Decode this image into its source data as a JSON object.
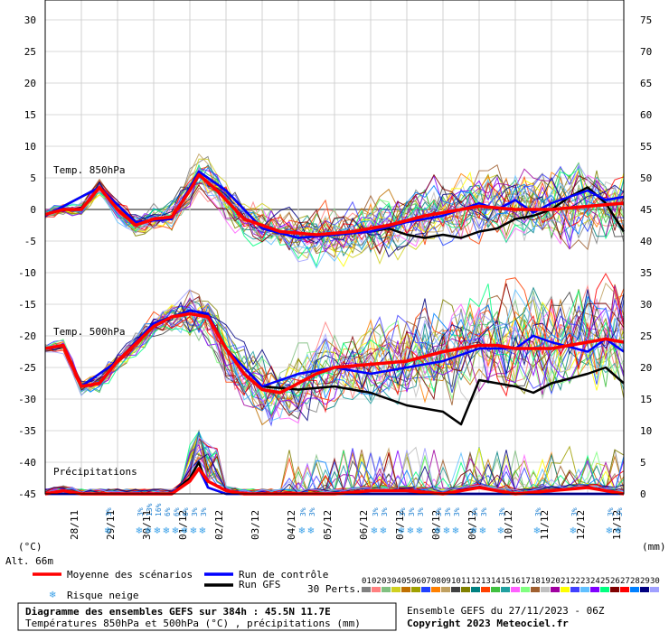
{
  "chart_data": {
    "type": "line",
    "title": "Diagramme des ensembles GEFS sur 384h : 45.5N 11.7E",
    "subtitle": "Températures 850hPa et 500hPa (°C) , précipitations (mm)",
    "run_info": "Ensemble GEFS du 27/11/2023 - 06Z",
    "copyright": "Copyright 2023 Meteociel.fr",
    "altitude": "Alt. 66m",
    "left_unit": "(°C)",
    "right_unit": "(mm)",
    "left_ticks": [
      "30",
      "25",
      "20",
      "15",
      "10",
      "5",
      "0",
      "-5",
      "-10",
      "-15",
      "-20",
      "-25",
      "-30",
      "-35",
      "-40",
      "-45"
    ],
    "right_ticks": [
      "75",
      "70",
      "65",
      "60",
      "55",
      "50",
      "45",
      "40",
      "35",
      "30",
      "25",
      "20",
      "15",
      "10",
      "5",
      "0"
    ],
    "left_range": [
      -45,
      30
    ],
    "right_range": [
      0,
      75
    ],
    "x_labels": [
      "28/11",
      "29/11",
      "30/11",
      "01/12",
      "02/12",
      "03/12",
      "04/12",
      "05/12",
      "06/12",
      "07/12",
      "08/12",
      "09/12",
      "10/12",
      "11/12",
      "12/12",
      "13/12"
    ],
    "panel_labels": {
      "t850": "Temp. 850hPa",
      "t500": "Temp. 500hPa",
      "precip": "Précipitations"
    },
    "legend": {
      "mean": "Moyenne des scénarios",
      "control": "Run de contrôle",
      "gfs": "Run GFS",
      "snow": "Risque neige",
      "perts": "30 Perts."
    },
    "pert_numbers": [
      "01",
      "02",
      "03",
      "04",
      "05",
      "06",
      "07",
      "08",
      "09",
      "10",
      "11",
      "12",
      "13",
      "14",
      "15",
      "16",
      "17",
      "18",
      "19",
      "20",
      "21",
      "22",
      "23",
      "24",
      "25",
      "26",
      "27",
      "28",
      "29",
      "30"
    ],
    "pert_colors": [
      "#808080",
      "#ff8080",
      "#80c080",
      "#d0d020",
      "#c07000",
      "#a0a000",
      "#2040ff",
      "#ff8000",
      "#c0a060",
      "#404040",
      "#808000",
      "#008080",
      "#ff4000",
      "#40c040",
      "#20a0a0",
      "#ff60ff",
      "#80ff80",
      "#a06030",
      "#c0c0c0",
      "#a000a0",
      "#ffff00",
      "#4040ff",
      "#60c0ff",
      "#8000ff",
      "#00ff80",
      "#800000",
      "#ff0000",
      "#0080ff",
      "#000080",
      "#a0a0ff"
    ],
    "series_colors": {
      "mean": "#ff0000",
      "control": "#0000ff",
      "gfs": "#000000"
    },
    "snow_markers": [
      {
        "pct": "3%",
        "day": 1.75
      },
      {
        "pct": "3%",
        "day": 2.62
      },
      {
        "pct": "13%",
        "day": 2.87
      },
      {
        "pct": "16%",
        "day": 3.12
      },
      {
        "pct": "6%",
        "day": 3.37
      },
      {
        "pct": "6%",
        "day": 3.62
      },
      {
        "pct": "6%",
        "day": 3.87
      },
      {
        "pct": "3%",
        "day": 4.12
      },
      {
        "pct": "3%",
        "day": 4.37
      },
      {
        "pct": "3%",
        "day": 7.12
      },
      {
        "pct": "3%",
        "day": 7.37
      },
      {
        "pct": "3%",
        "day": 9.12
      },
      {
        "pct": "3%",
        "day": 9.37
      },
      {
        "pct": "3%",
        "day": 9.87
      },
      {
        "pct": "3%",
        "day": 10.12
      },
      {
        "pct": "3%",
        "day": 10.37
      },
      {
        "pct": "3%",
        "day": 10.87
      },
      {
        "pct": "3%",
        "day": 11.12
      },
      {
        "pct": "3%",
        "day": 11.37
      },
      {
        "pct": "3%",
        "day": 11.87
      },
      {
        "pct": "3%",
        "day": 12.12
      },
      {
        "pct": "3%",
        "day": 12.62
      },
      {
        "pct": "3%",
        "day": 13.62
      },
      {
        "pct": "3%",
        "day": 14.62
      },
      {
        "pct": "3%",
        "day": 15.62
      },
      {
        "pct": "3%",
        "day": 15.87
      }
    ],
    "t850": {
      "mean": [
        [
          0,
          -0.8
        ],
        [
          0.5,
          0
        ],
        [
          1,
          0
        ],
        [
          1.5,
          3.5
        ],
        [
          2,
          0
        ],
        [
          2.5,
          -2.5
        ],
        [
          3,
          -1.5
        ],
        [
          3.5,
          -1.2
        ],
        [
          4,
          3
        ],
        [
          4.25,
          5.5
        ],
        [
          4.75,
          3
        ],
        [
          5.5,
          -1.5
        ],
        [
          6.5,
          -3.5
        ],
        [
          7.5,
          -4
        ],
        [
          8.5,
          -3.5
        ],
        [
          9.5,
          -2.5
        ],
        [
          10.5,
          -1
        ],
        [
          11.5,
          0
        ],
        [
          12,
          0.5
        ],
        [
          13,
          0
        ],
        [
          14,
          0
        ],
        [
          15,
          0.5
        ],
        [
          16,
          1
        ]
      ],
      "control": [
        [
          0,
          -1
        ],
        [
          1.5,
          3.5
        ],
        [
          2.5,
          -2
        ],
        [
          3.5,
          -1.5
        ],
        [
          4.25,
          6
        ],
        [
          5,
          3
        ],
        [
          6,
          -3
        ],
        [
          7,
          -4.5
        ],
        [
          8,
          -4
        ],
        [
          9,
          -3.5
        ],
        [
          10,
          -2
        ],
        [
          10.5,
          -1.5
        ],
        [
          11,
          -1
        ],
        [
          11.5,
          0
        ],
        [
          12,
          1
        ],
        [
          12.5,
          0
        ],
        [
          13,
          1.5
        ],
        [
          13.5,
          -0.5
        ],
        [
          14,
          1
        ],
        [
          14.5,
          2
        ],
        [
          15,
          3
        ],
        [
          15.5,
          1.5
        ],
        [
          16,
          2
        ]
      ],
      "gfs": [
        [
          0,
          -1
        ],
        [
          1.5,
          3.5
        ],
        [
          2.5,
          -2
        ],
        [
          3.5,
          -1.5
        ],
        [
          4.25,
          6
        ],
        [
          5,
          3
        ],
        [
          6,
          -3
        ],
        [
          7,
          -4.5
        ],
        [
          8,
          -4
        ],
        [
          9,
          -3.5
        ],
        [
          9.5,
          -3
        ],
        [
          10,
          -4
        ],
        [
          10.5,
          -4.5
        ],
        [
          11,
          -4
        ],
        [
          11.5,
          -4.5
        ],
        [
          12,
          -3.5
        ],
        [
          12.5,
          -3
        ],
        [
          13,
          -1.5
        ],
        [
          13.5,
          -1
        ],
        [
          14,
          0
        ],
        [
          14.5,
          2
        ],
        [
          15,
          3.5
        ],
        [
          15.5,
          1
        ],
        [
          16,
          -3.5
        ]
      ]
    },
    "t500": {
      "mean": [
        [
          0,
          -22
        ],
        [
          0.5,
          -21.5
        ],
        [
          1,
          -28
        ],
        [
          1.5,
          -27.5
        ],
        [
          2,
          -24
        ],
        [
          3,
          -18.5
        ],
        [
          3.5,
          -17
        ],
        [
          4,
          -16.5
        ],
        [
          4.5,
          -17
        ],
        [
          5,
          -22
        ],
        [
          5.5,
          -26
        ],
        [
          6,
          -28.5
        ],
        [
          6.5,
          -29
        ],
        [
          7,
          -27.5
        ],
        [
          7.5,
          -26
        ],
        [
          8,
          -25
        ],
        [
          9,
          -24.5
        ],
        [
          10,
          -24
        ],
        [
          11,
          -22.5
        ],
        [
          12,
          -21.5
        ],
        [
          12.5,
          -21.5
        ],
        [
          13,
          -22
        ],
        [
          14,
          -22
        ],
        [
          15,
          -21
        ],
        [
          15.5,
          -20.5
        ],
        [
          16,
          -21
        ]
      ],
      "control": [
        [
          0,
          -22
        ],
        [
          0.5,
          -21.5
        ],
        [
          1,
          -28
        ],
        [
          2,
          -24
        ],
        [
          3,
          -18
        ],
        [
          4,
          -16
        ],
        [
          4.5,
          -16.5
        ],
        [
          5,
          -22
        ],
        [
          6,
          -28
        ],
        [
          7,
          -26
        ],
        [
          8,
          -25
        ],
        [
          9,
          -26
        ],
        [
          10,
          -25
        ],
        [
          11,
          -24
        ],
        [
          12,
          -22
        ],
        [
          13,
          -22
        ],
        [
          13.5,
          -20
        ],
        [
          14,
          -21
        ],
        [
          15,
          -22.5
        ],
        [
          15.5,
          -20.5
        ],
        [
          16,
          -22.5
        ]
      ],
      "gfs": [
        [
          0,
          -22
        ],
        [
          0.5,
          -21.5
        ],
        [
          1,
          -28
        ],
        [
          2,
          -24
        ],
        [
          3,
          -18
        ],
        [
          4,
          -16
        ],
        [
          4.5,
          -16.5
        ],
        [
          5,
          -22
        ],
        [
          6,
          -28
        ],
        [
          7,
          -28.5
        ],
        [
          8,
          -28
        ],
        [
          9,
          -29
        ],
        [
          10,
          -31
        ],
        [
          11,
          -32
        ],
        [
          11.5,
          -34
        ],
        [
          12,
          -27
        ],
        [
          12.5,
          -27.5
        ],
        [
          13,
          -28
        ],
        [
          13.5,
          -29
        ],
        [
          14,
          -27.5
        ],
        [
          15,
          -26
        ],
        [
          15.5,
          -25
        ],
        [
          16,
          -27.5
        ]
      ]
    },
    "precip": {
      "mean": [
        [
          0,
          0
        ],
        [
          0.5,
          0.5
        ],
        [
          1,
          0
        ],
        [
          3.5,
          0
        ],
        [
          4,
          2
        ],
        [
          4.25,
          4
        ],
        [
          4.5,
          2
        ],
        [
          5,
          0.5
        ],
        [
          5.5,
          0
        ],
        [
          7,
          0
        ],
        [
          8,
          0
        ],
        [
          9,
          0.5
        ],
        [
          10,
          0.5
        ],
        [
          11,
          0
        ],
        [
          12,
          1
        ],
        [
          12.5,
          0.5
        ],
        [
          13,
          0
        ],
        [
          14,
          0.5
        ],
        [
          15,
          1
        ],
        [
          15.5,
          0.5
        ],
        [
          16,
          0
        ]
      ],
      "control": [
        [
          0,
          0
        ],
        [
          1,
          0
        ],
        [
          3.5,
          0
        ],
        [
          4,
          2
        ],
        [
          4.25,
          4
        ],
        [
          4.5,
          1
        ],
        [
          5,
          0
        ],
        [
          16,
          0
        ]
      ],
      "gfs": [
        [
          0,
          0
        ],
        [
          1,
          0
        ],
        [
          3.5,
          0
        ],
        [
          4,
          2.5
        ],
        [
          4.25,
          5
        ],
        [
          4.5,
          1
        ],
        [
          5,
          0
        ],
        [
          16,
          0
        ]
      ]
    }
  }
}
